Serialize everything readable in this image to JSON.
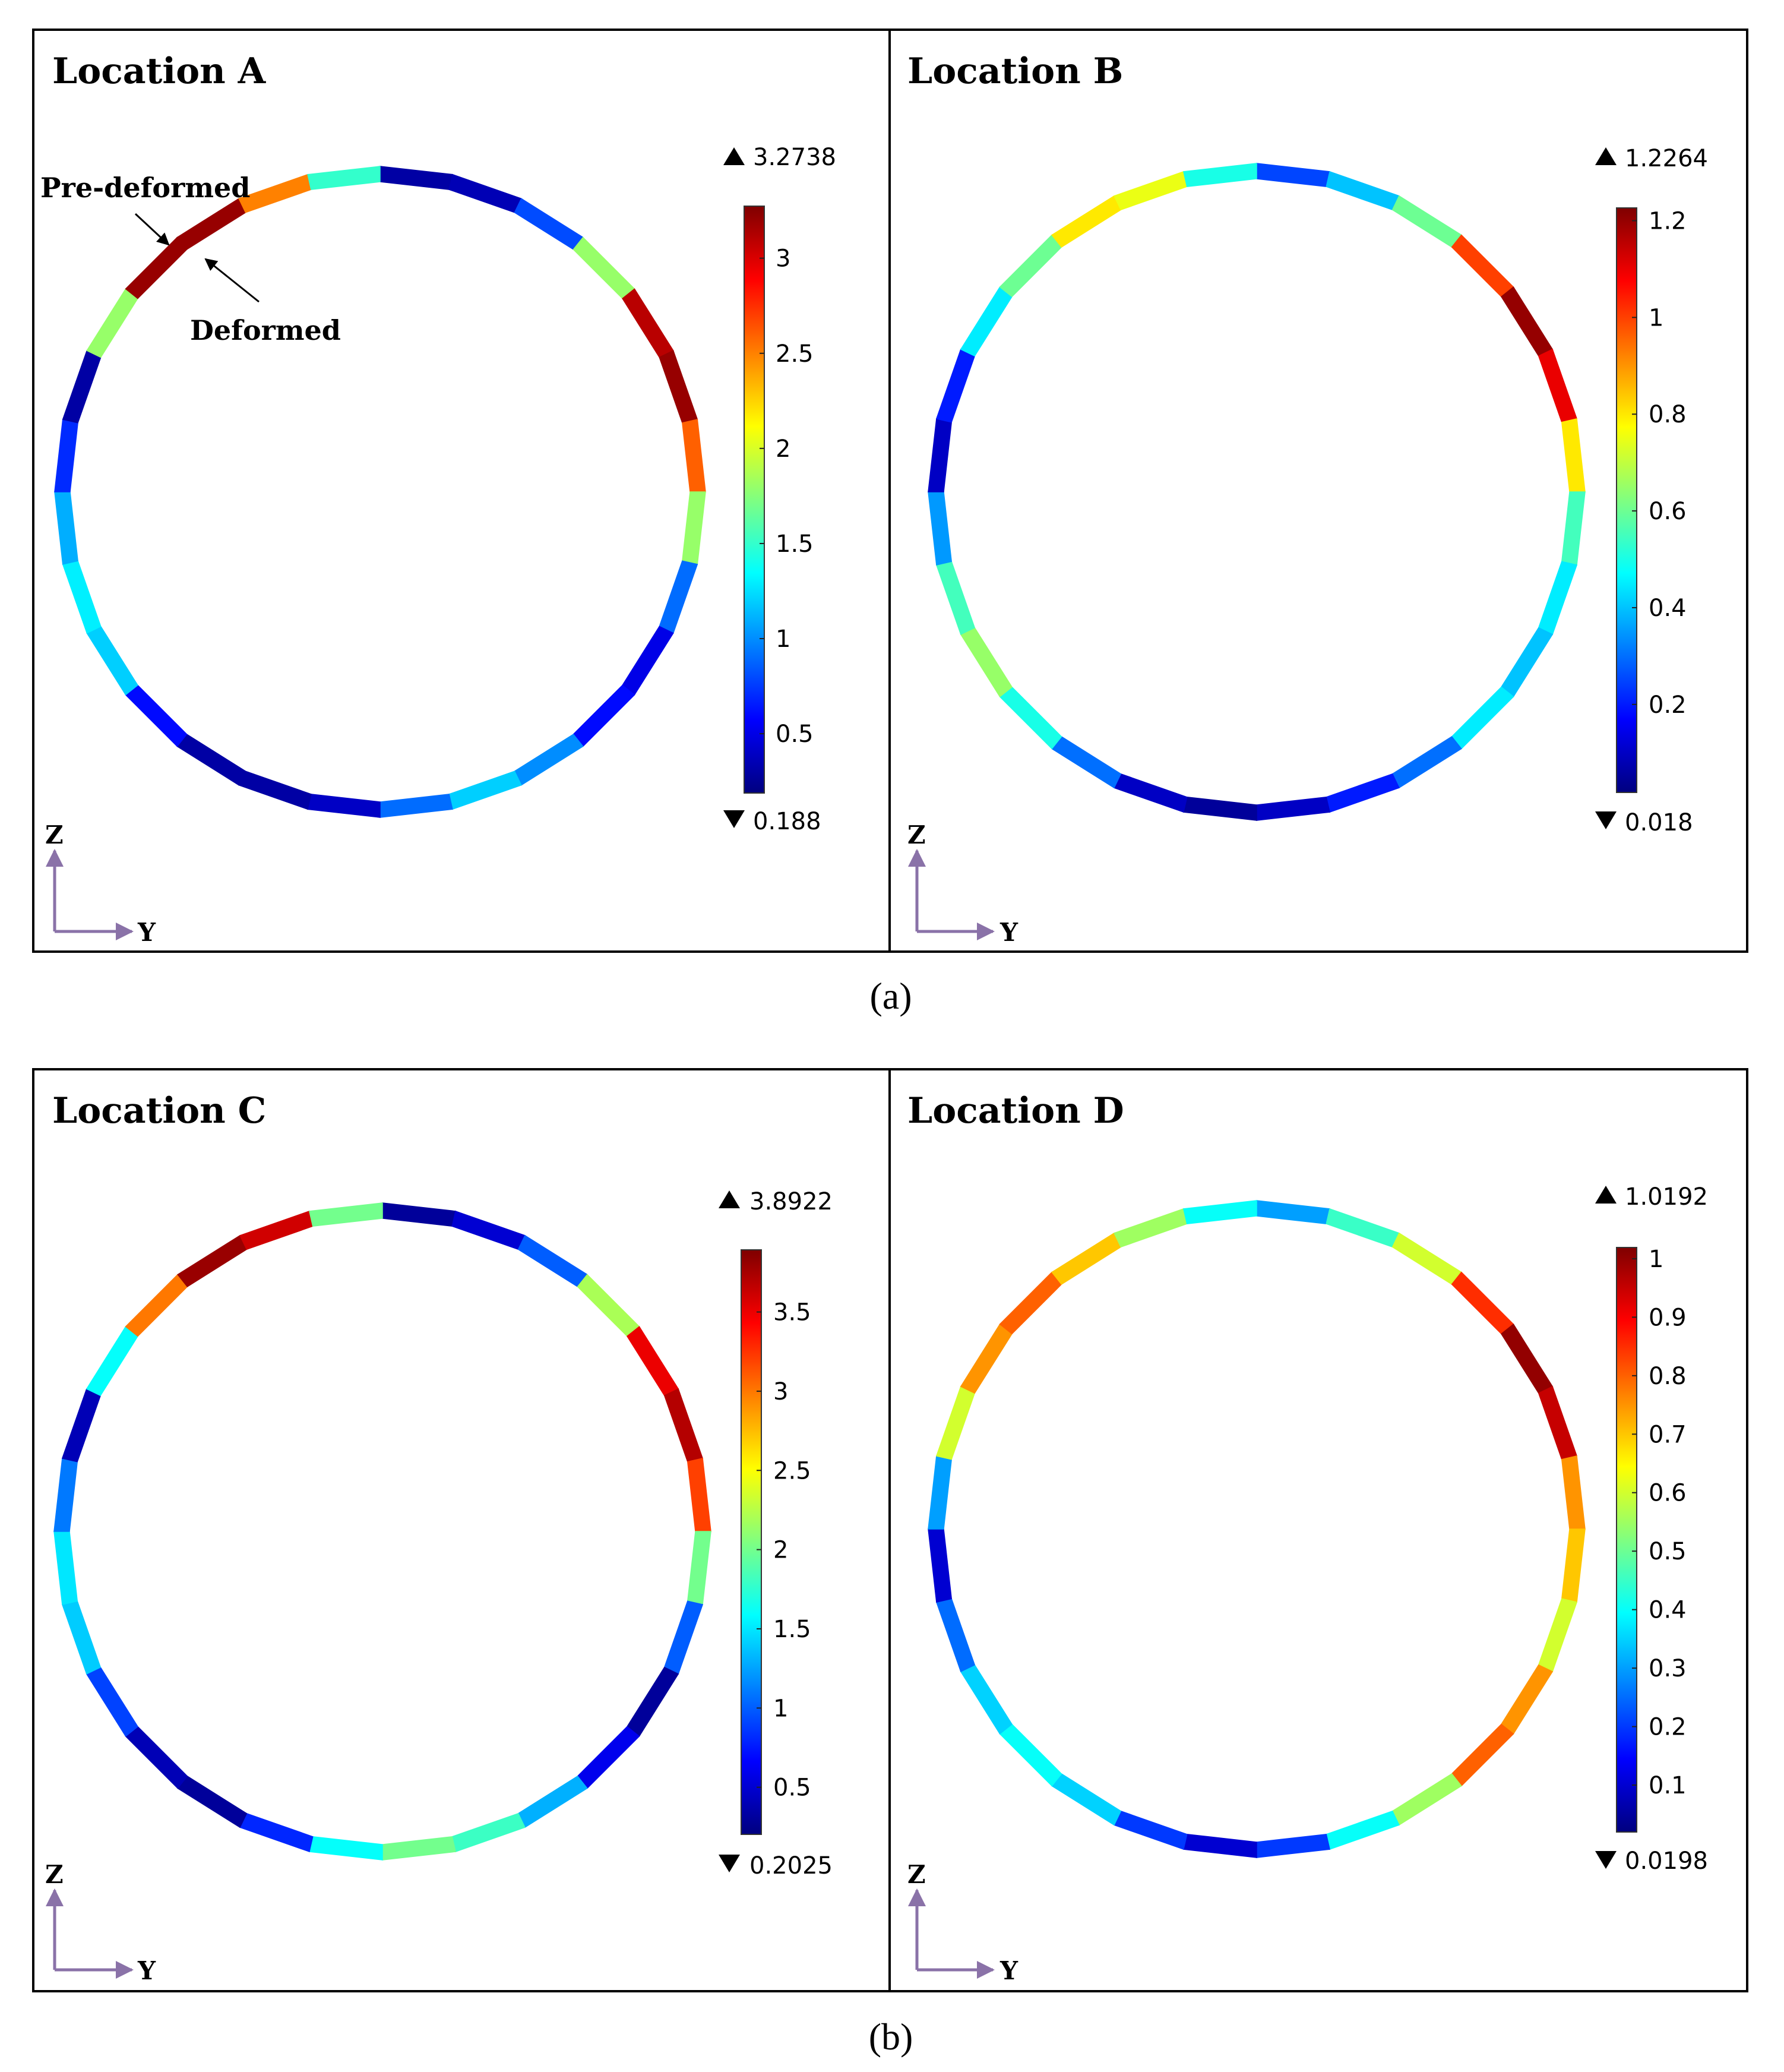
{
  "figure": {
    "captions": [
      "(a)",
      "(b)"
    ],
    "axis_labels": {
      "vertical": "Z",
      "horizontal": "Y"
    },
    "annotations": {
      "pre_deformed": "Pre-deformed",
      "deformed": "Deformed"
    },
    "colors": {
      "frame": "#000000",
      "axis_arrow": "#8a72a8",
      "undeformed_outline": "#a8a8a8",
      "colormap": [
        "#00007f",
        "#0000ff",
        "#0080ff",
        "#00ffff",
        "#80ff80",
        "#ffff00",
        "#ff8000",
        "#ff0000",
        "#7f0000"
      ]
    }
  },
  "panels": [
    {
      "title": "Location A",
      "colorbar": {
        "max_label": "3.2738",
        "min_label": "0.188",
        "max": 3.2738,
        "min": 0.188,
        "ticks": [
          "3",
          "2.5",
          "2",
          "1.5",
          "1",
          "0.5"
        ]
      },
      "ring_values": [
        0.3,
        0.35,
        0.8,
        1.8,
        3.1,
        3.2,
        2.6,
        1.8,
        0.9,
        0.5,
        0.6,
        1.0,
        1.2,
        0.9,
        0.4,
        0.3,
        0.3,
        0.6,
        1.2,
        1.3,
        1.1,
        0.7,
        0.3,
        1.8,
        3.2,
        3.2,
        2.5,
        1.5
      ]
    },
    {
      "title": "Location B",
      "colorbar": {
        "max_label": "1.2264",
        "min_label": "0.018",
        "max": 1.2264,
        "min": 0.018,
        "ticks": [
          "1.2",
          "1",
          "0.8",
          "0.6",
          "0.4",
          "0.2"
        ]
      },
      "ring_values": [
        0.25,
        0.4,
        0.6,
        1.0,
        1.2,
        1.1,
        0.8,
        0.55,
        0.45,
        0.4,
        0.45,
        0.3,
        0.2,
        0.1,
        0.05,
        0.1,
        0.3,
        0.5,
        0.65,
        0.55,
        0.35,
        0.1,
        0.2,
        0.45,
        0.6,
        0.8,
        0.75,
        0.5
      ]
    },
    {
      "title": "Location C",
      "colorbar": {
        "max_label": "3.8922",
        "min_label": "0.2025",
        "max": 3.8922,
        "min": 0.2025,
        "ticks": [
          "3.5",
          "3",
          "2.5",
          "2",
          "1.5",
          "1",
          "0.5"
        ]
      },
      "ring_values": [
        0.3,
        0.5,
        1.0,
        2.2,
        3.5,
        3.7,
        3.2,
        2.0,
        1.0,
        0.3,
        0.6,
        1.3,
        1.8,
        2.0,
        1.6,
        0.8,
        0.3,
        0.4,
        0.9,
        1.4,
        1.5,
        1.1,
        0.4,
        1.6,
        3.0,
        3.8,
        3.6,
        2.0
      ]
    },
    {
      "title": "Location D",
      "colorbar": {
        "max_label": "1.0192",
        "min_label": "0.0198",
        "max": 1.0192,
        "min": 0.0198,
        "ticks": [
          "1",
          "0.9",
          "0.8",
          "0.7",
          "0.6",
          "0.5",
          "0.4",
          "0.3",
          "0.2",
          "0.1"
        ]
      },
      "ring_values": [
        0.3,
        0.45,
        0.6,
        0.85,
        1.0,
        0.95,
        0.75,
        0.7,
        0.6,
        0.75,
        0.8,
        0.55,
        0.4,
        0.2,
        0.1,
        0.2,
        0.35,
        0.4,
        0.35,
        0.25,
        0.1,
        0.3,
        0.6,
        0.75,
        0.8,
        0.7,
        0.55,
        0.4
      ]
    }
  ]
}
